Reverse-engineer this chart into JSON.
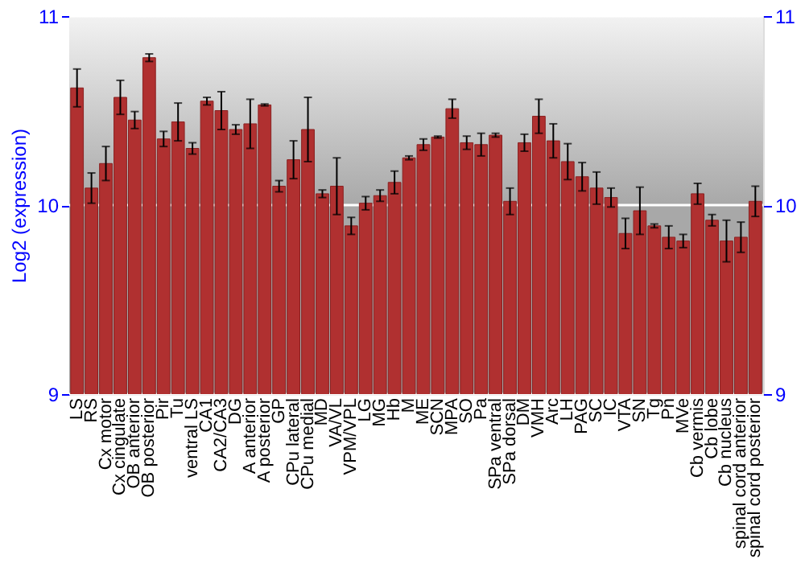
{
  "chart_data": {
    "type": "bar",
    "ylabel": "Log2 (expression)",
    "color": "#b03030",
    "categories": [
      "LS",
      "RS",
      "Cx motor",
      "Cx cingulate",
      "OB anterior",
      "OB posterior",
      "Pir",
      "Tu",
      "ventral LS",
      "CA1",
      "CA2/CA3",
      "DG",
      "A anterior",
      "A posterior",
      "GP",
      "CPu lateral",
      "CPu medial",
      "MD",
      "VA/VL",
      "VPM/VPL",
      "LG",
      "MG",
      "Hb",
      "M",
      "ME",
      "SCN",
      "MPA",
      "SO",
      "Pa",
      "SPa ventral",
      "SPa dorsal",
      "DM",
      "VMH",
      "Arc",
      "LH",
      "PAG",
      "SC",
      "IC",
      "VTA",
      "SN",
      "Tg",
      "Pn",
      "MVe",
      "Cb vermis",
      "Cb lobe",
      "Cb nucleus",
      "spinal cord anterior",
      "spinal cord posterior"
    ],
    "values": [
      10.62,
      10.09,
      10.22,
      10.57,
      10.45,
      10.78,
      10.35,
      10.44,
      10.3,
      10.55,
      10.5,
      10.4,
      10.43,
      10.53,
      10.1,
      10.24,
      10.4,
      10.06,
      10.1,
      9.89,
      10.01,
      10.05,
      10.12,
      10.25,
      10.32,
      10.36,
      10.51,
      10.33,
      10.32,
      10.37,
      10.02,
      10.33,
      10.47,
      10.34,
      10.23,
      10.15,
      10.09,
      10.04,
      9.85,
      9.97,
      9.89,
      9.83,
      9.81,
      10.06,
      9.92,
      9.81,
      9.83,
      10.02
    ],
    "errors": [
      0.1,
      0.08,
      0.09,
      0.09,
      0.045,
      0.02,
      0.04,
      0.1,
      0.03,
      0.02,
      0.1,
      0.025,
      0.13,
      0.005,
      0.03,
      0.1,
      0.17,
      0.02,
      0.15,
      0.045,
      0.035,
      0.03,
      0.06,
      0.01,
      0.03,
      0.005,
      0.05,
      0.035,
      0.06,
      0.01,
      0.07,
      0.045,
      0.09,
      0.09,
      0.095,
      0.075,
      0.085,
      0.05,
      0.08,
      0.125,
      0.01,
      0.06,
      0.035,
      0.055,
      0.03,
      0.11,
      0.08,
      0.08
    ],
    "ylim": [
      9,
      11
    ],
    "yticks": [
      9,
      10,
      11
    ],
    "y2lim": [
      9,
      11
    ],
    "y2ticks": [
      9,
      10,
      11
    ],
    "grid": "y"
  }
}
